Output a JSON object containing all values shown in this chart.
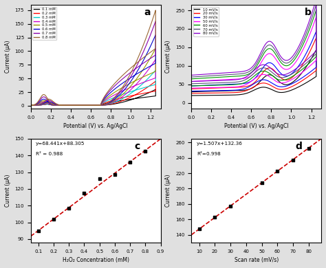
{
  "panel_a": {
    "label": "a",
    "concentrations": [
      "0.1 mM",
      "0.2 mM",
      "0.3 mM",
      "0.4 mM",
      "0.5 mM",
      "0.6 mM",
      "0.7 mM",
      "0.8 mM"
    ],
    "colors": [
      "#000000",
      "#ff0000",
      "#00cccc",
      "#cc00cc",
      "#999900",
      "#0000cc",
      "#8800aa",
      "#996633"
    ],
    "xlabel": "Potential (V) vs. Ag/AgCl",
    "ylabel": "Current (μA)",
    "xlim": [
      0.0,
      1.3
    ],
    "ylim": [
      -5,
      185
    ],
    "peak_currents_fwd": [
      28,
      35,
      42,
      50,
      60,
      75,
      90,
      110
    ],
    "peak_currents_max": [
      30,
      45,
      65,
      85,
      105,
      130,
      155,
      175
    ]
  },
  "panel_b": {
    "label": "b",
    "scan_rates": [
      "10 mV/s",
      "20 mV/s",
      "30 mV/s",
      "50 mV/s",
      "60 mV/s",
      "70 mV/s",
      "80 mV/s"
    ],
    "colors": [
      "#000000",
      "#ff0000",
      "#0000ff",
      "#ff00ff",
      "#009900",
      "#555577",
      "#8800cc"
    ],
    "xlabel": "Potential (V) vs. Ag/AgCl",
    "ylabel": "Current (μA)",
    "xlim": [
      0.0,
      1.3
    ],
    "ylim": [
      -15,
      265
    ],
    "fwd_base": [
      30,
      38,
      46,
      58,
      65,
      70,
      75
    ],
    "peak_max": [
      135,
      165,
      180,
      215,
      230,
      243,
      258
    ],
    "ret_base": [
      25,
      30,
      35,
      45,
      52,
      58,
      62
    ]
  },
  "panel_c": {
    "label": "c",
    "x": [
      0.1,
      0.2,
      0.3,
      0.4,
      0.5,
      0.6,
      0.7,
      0.8
    ],
    "y": [
      95.0,
      102.0,
      108.5,
      117.5,
      126.0,
      128.5,
      136.0,
      142.5
    ],
    "equation": "y=68.441x+88.305",
    "r2": "R² = 0.988",
    "xlabel": "H₂O₂ Concentration (mM)",
    "ylabel": "Current (μA)",
    "xlim": [
      0.05,
      0.9
    ],
    "ylim": [
      88,
      150
    ],
    "line_color": "#cc0000",
    "scatter_color": "#000000",
    "slope": 68.441,
    "intercept": 88.305
  },
  "panel_d": {
    "label": "d",
    "x": [
      10,
      20,
      30,
      50,
      60,
      70,
      80
    ],
    "y": [
      147.5,
      162.5,
      177.5,
      207.5,
      222.5,
      237.5,
      252.5
    ],
    "equation": "y=1.507x+132.36",
    "r2": "R²=0.998",
    "xlabel": "Scan rate (mV/s)",
    "ylabel": "Current (μA)",
    "xlim": [
      5,
      88
    ],
    "ylim": [
      130,
      265
    ],
    "line_color": "#cc0000",
    "scatter_color": "#000000",
    "slope": 1.507,
    "intercept": 132.36
  },
  "bg_color": "#e0e0e0"
}
